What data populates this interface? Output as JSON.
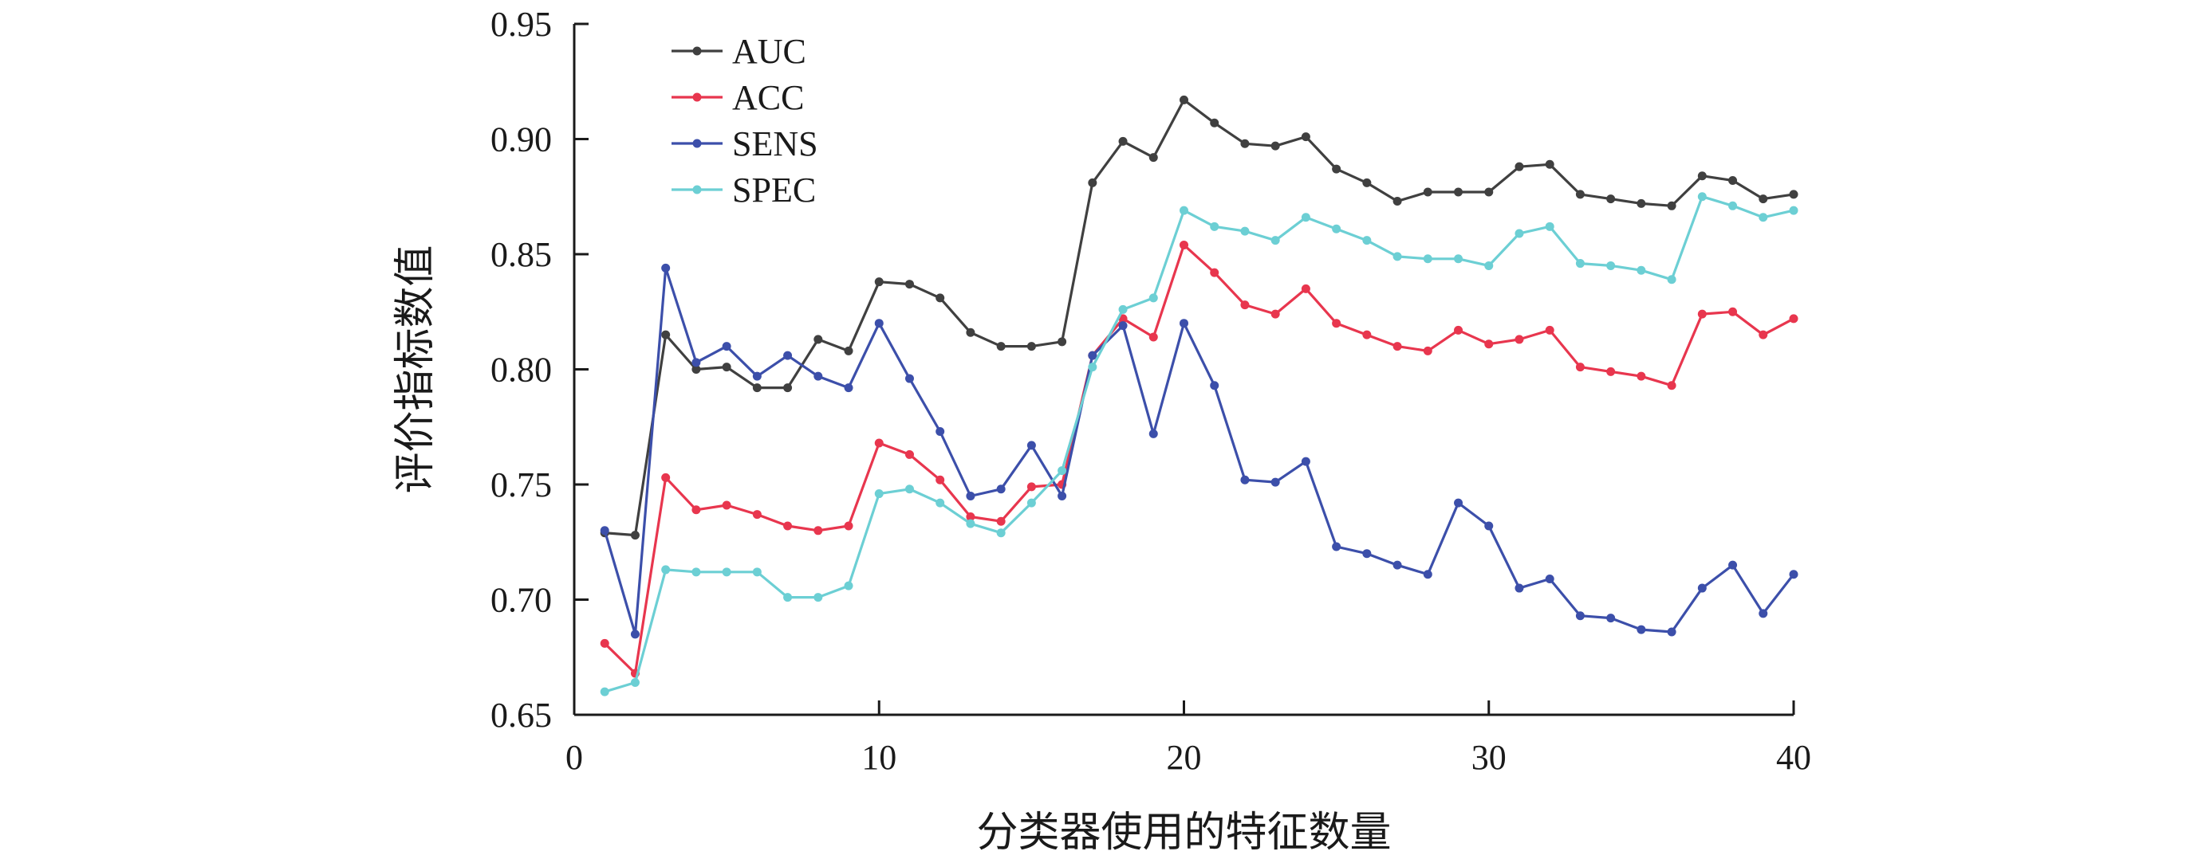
{
  "chart_data": {
    "type": "line",
    "xlabel": "分类器使用的特征数量",
    "ylabel": "评价指标数值",
    "xlim": [
      0,
      40
    ],
    "ylim": [
      0.65,
      0.95
    ],
    "xticks": [
      "0",
      "10",
      "20",
      "30",
      "40"
    ],
    "yticks": [
      "0.65",
      "0.70",
      "0.75",
      "0.80",
      "0.85",
      "0.90",
      "0.95"
    ],
    "grid": false,
    "legend_position": "top-left",
    "x": [
      1,
      2,
      3,
      4,
      5,
      6,
      7,
      8,
      9,
      10,
      11,
      12,
      13,
      14,
      15,
      16,
      17,
      18,
      19,
      20,
      21,
      22,
      23,
      24,
      25,
      26,
      27,
      28,
      29,
      30,
      31,
      32,
      33,
      34,
      35,
      36,
      37,
      38,
      39,
      40
    ],
    "series": [
      {
        "name": "AUC",
        "color": "#404040",
        "values": [
          0.729,
          0.728,
          0.815,
          0.8,
          0.801,
          0.792,
          0.792,
          0.813,
          0.808,
          0.838,
          0.837,
          0.831,
          0.816,
          0.81,
          0.81,
          0.812,
          0.881,
          0.899,
          0.892,
          0.917,
          0.907,
          0.898,
          0.897,
          0.901,
          0.887,
          0.881,
          0.873,
          0.877,
          0.877,
          0.877,
          0.888,
          0.889,
          0.876,
          0.874,
          0.872,
          0.871,
          0.884,
          0.882,
          0.874,
          0.876
        ]
      },
      {
        "name": "ACC",
        "color": "#e8364e",
        "values": [
          0.681,
          0.668,
          0.753,
          0.739,
          0.741,
          0.737,
          0.732,
          0.73,
          0.732,
          0.768,
          0.763,
          0.752,
          0.736,
          0.734,
          0.749,
          0.75,
          0.806,
          0.822,
          0.814,
          0.854,
          0.842,
          0.828,
          0.824,
          0.835,
          0.82,
          0.815,
          0.81,
          0.808,
          0.817,
          0.811,
          0.813,
          0.817,
          0.801,
          0.799,
          0.797,
          0.793,
          0.824,
          0.825,
          0.815,
          0.822
        ]
      },
      {
        "name": "SENS",
        "color": "#3c4faa",
        "values": [
          0.73,
          0.685,
          0.844,
          0.803,
          0.81,
          0.797,
          0.806,
          0.797,
          0.792,
          0.82,
          0.796,
          0.773,
          0.745,
          0.748,
          0.767,
          0.745,
          0.806,
          0.819,
          0.772,
          0.82,
          0.793,
          0.752,
          0.751,
          0.76,
          0.723,
          0.72,
          0.715,
          0.711,
          0.742,
          0.732,
          0.705,
          0.709,
          0.693,
          0.692,
          0.687,
          0.686,
          0.705,
          0.715,
          0.694,
          0.711
        ]
      },
      {
        "name": "SPEC",
        "color": "#6ccfd4",
        "values": [
          0.66,
          0.664,
          0.713,
          0.712,
          0.712,
          0.712,
          0.701,
          0.701,
          0.706,
          0.746,
          0.748,
          0.742,
          0.733,
          0.729,
          0.742,
          0.756,
          0.801,
          0.826,
          0.831,
          0.869,
          0.862,
          0.86,
          0.856,
          0.866,
          0.861,
          0.856,
          0.849,
          0.848,
          0.848,
          0.845,
          0.859,
          0.862,
          0.846,
          0.845,
          0.843,
          0.839,
          0.875,
          0.871,
          0.866,
          0.869
        ]
      }
    ]
  }
}
